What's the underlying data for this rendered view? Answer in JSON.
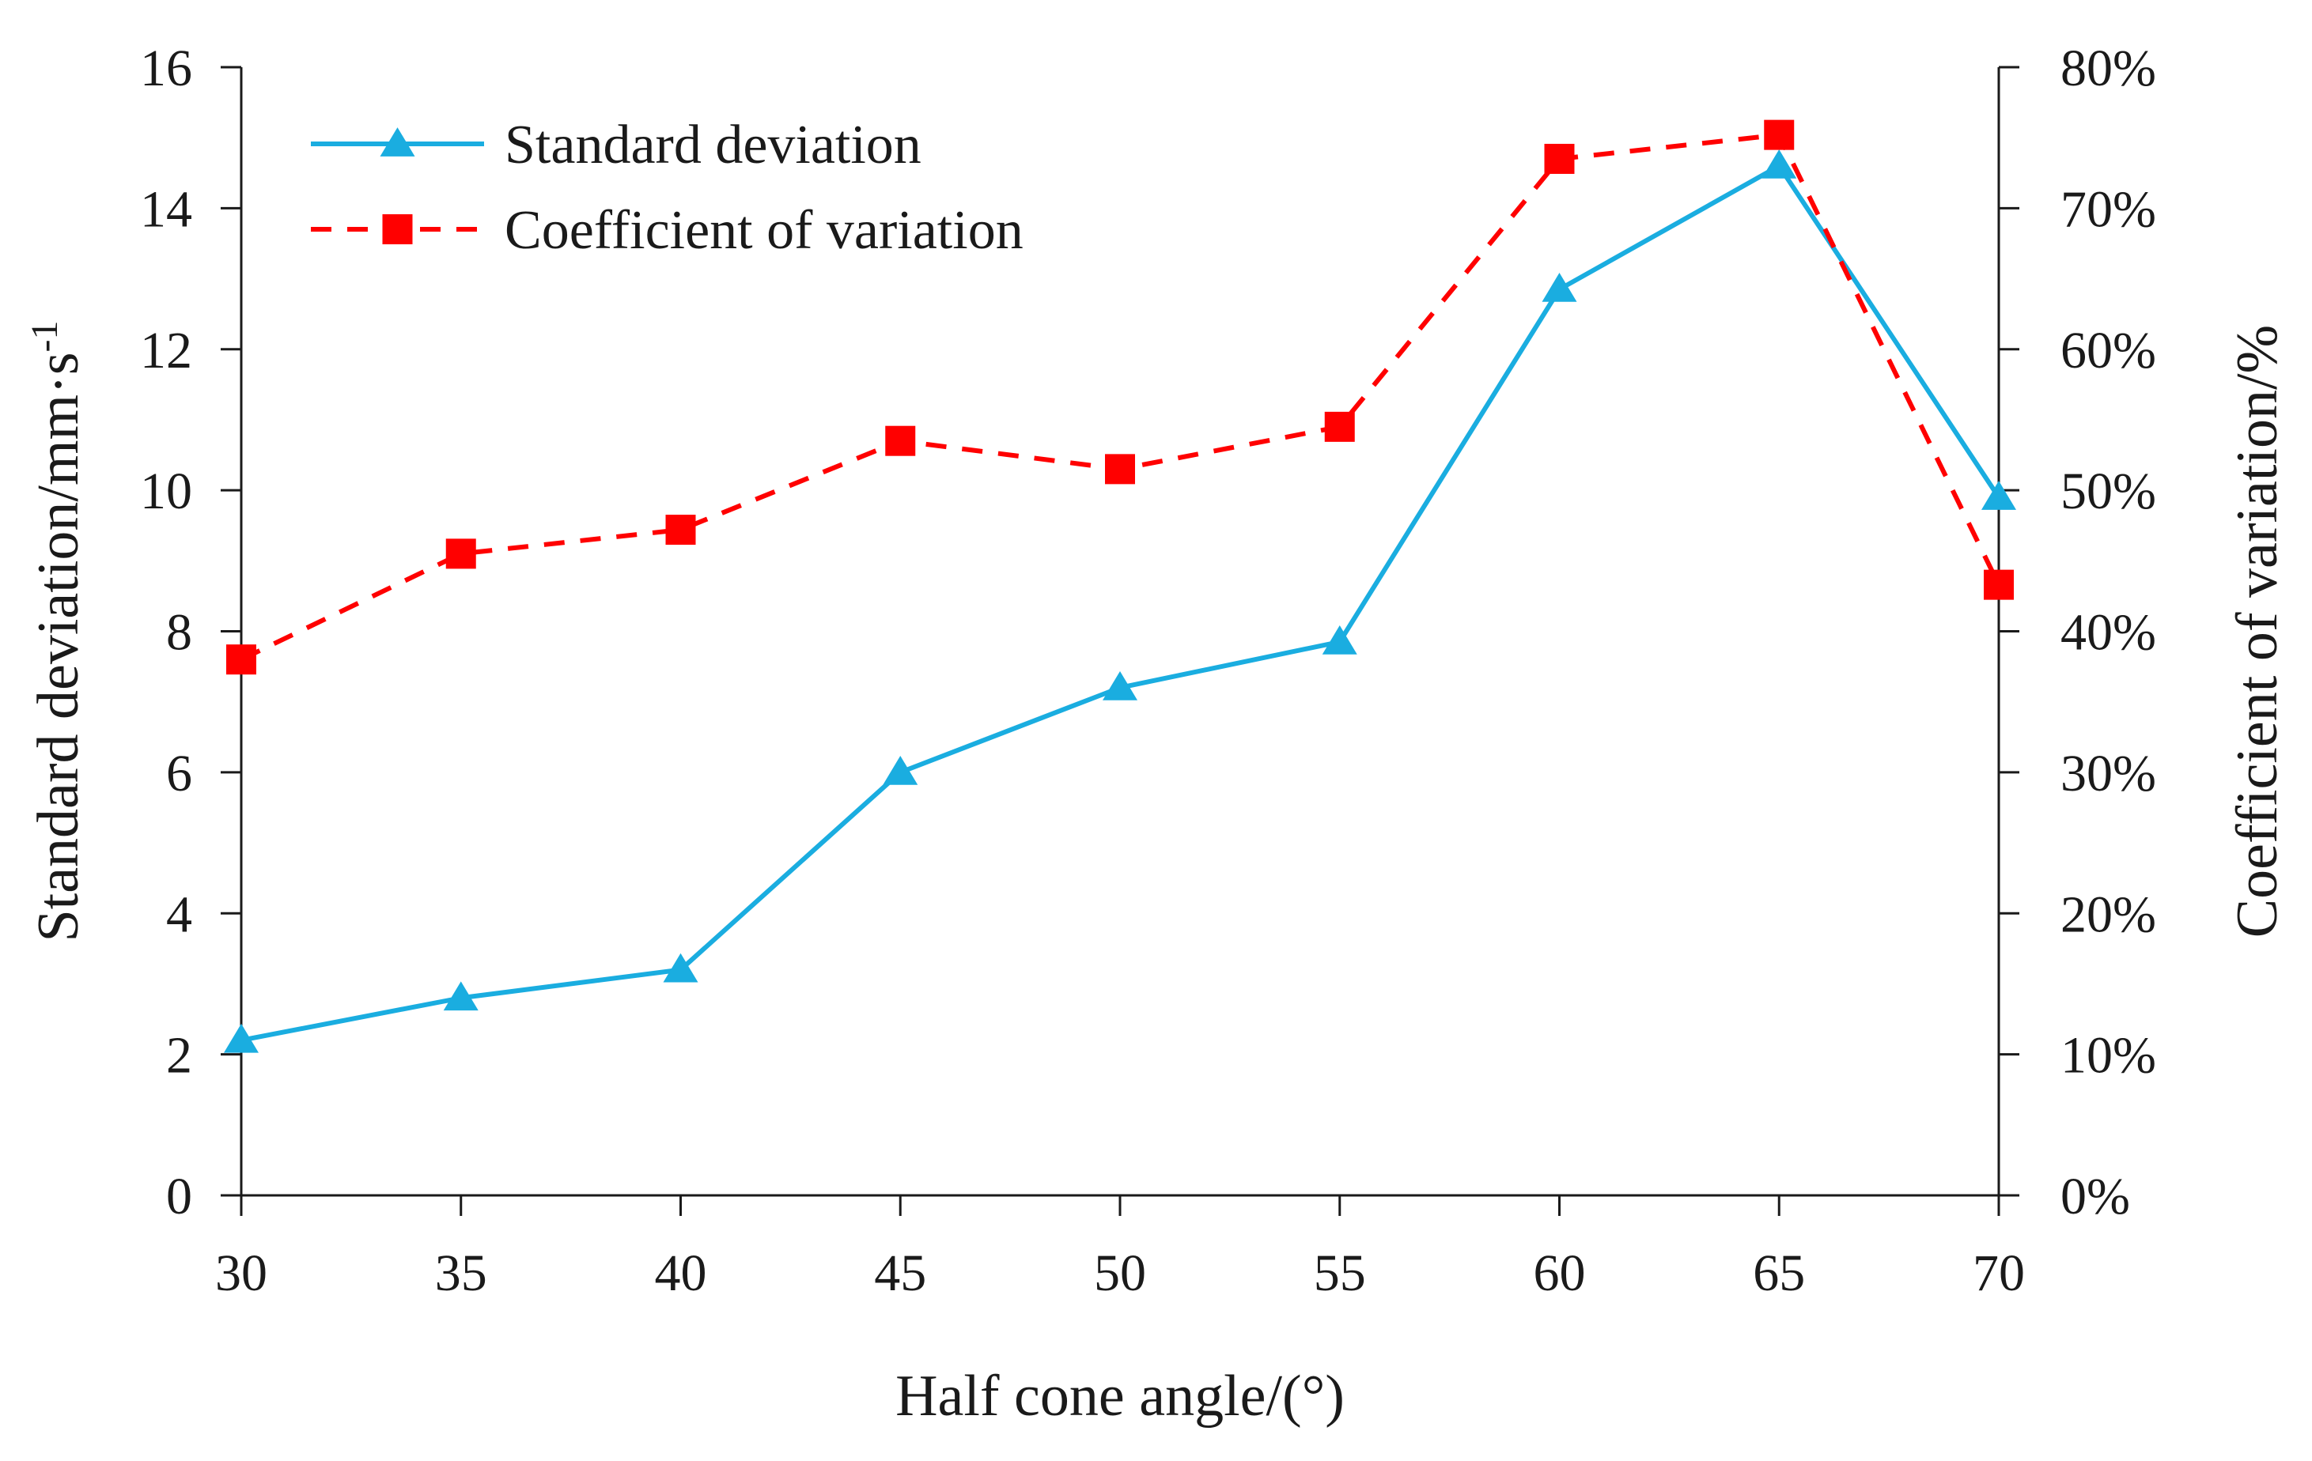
{
  "chart_data": {
    "type": "line",
    "title": "",
    "x": [
      30,
      35,
      40,
      45,
      50,
      55,
      60,
      65,
      70
    ],
    "xlabel": "Half cone angle/(°)",
    "xlim": [
      30,
      70
    ],
    "xticks": [
      "30",
      "35",
      "40",
      "45",
      "50",
      "55",
      "60",
      "65",
      "70"
    ],
    "ylabel_left": {
      "main": "Standard deviation/mm·s",
      "superscript": "-1"
    },
    "ylim_left": [
      0,
      16
    ],
    "yticks_left": [
      "0",
      "2",
      "4",
      "6",
      "8",
      "10",
      "12",
      "14",
      "16"
    ],
    "ylabel_right": "Coefficient of variation/%",
    "ylim_right": [
      0,
      80
    ],
    "yticks_right": [
      "0%",
      "10%",
      "20%",
      "30%",
      "40%",
      "50%",
      "60%",
      "70%",
      "80%"
    ],
    "grid": false,
    "legend_position": "top-left",
    "series": [
      {
        "name": "Standard deviation",
        "axis": "left",
        "color": "#1AADE0",
        "line_style": "solid",
        "marker": "triangle",
        "values": [
          2.2,
          2.8,
          3.2,
          6.0,
          7.2,
          7.85,
          12.85,
          14.6,
          9.9
        ]
      },
      {
        "name": "Coefficient of variation",
        "axis": "right",
        "color": "#FF0000",
        "line_style": "dashed",
        "marker": "square",
        "values": [
          38,
          45.5,
          47.2,
          53.5,
          51.5,
          54.5,
          73.5,
          75.2,
          43.3
        ]
      }
    ]
  }
}
